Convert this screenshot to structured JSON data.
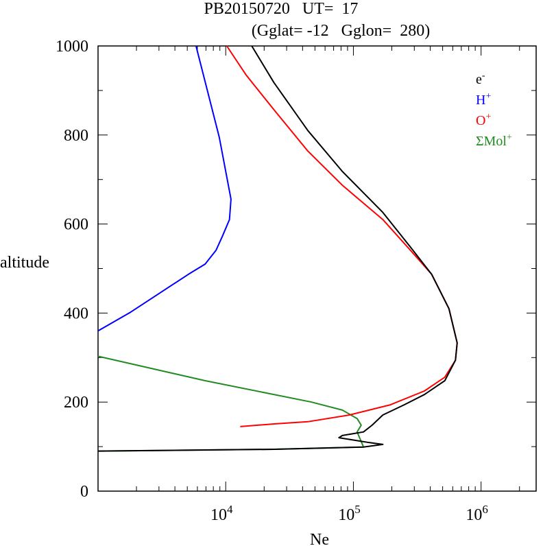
{
  "chart_data": {
    "type": "line",
    "title": "PB20150720   UT=  17",
    "subtitle": "(Gglat= -12   Gglon=  280)",
    "xlabel": "Ne",
    "ylabel": "altitude",
    "xscale": "log",
    "xlim": [
      1000,
      2700000
    ],
    "ylim": [
      0,
      1000
    ],
    "xticks": [
      {
        "value": 10000,
        "base": "10",
        "exp": "4"
      },
      {
        "value": 100000,
        "base": "10",
        "exp": "5"
      },
      {
        "value": 1000000,
        "base": "10",
        "exp": "6"
      }
    ],
    "yticks": [
      0,
      200,
      400,
      600,
      800,
      1000
    ],
    "grid": false,
    "legend_placement": "top-right",
    "series": [
      {
        "name": "e",
        "sup": "-",
        "color": "#000000",
        "x": [
          16000,
          23800,
          44000,
          82000,
          170000,
          280000,
          410000,
          560000,
          650000,
          630000,
          520000,
          360000,
          250000,
          170000,
          140000,
          120000,
          82000,
          77000,
          134000,
          170000,
          120000,
          24000,
          1000
        ],
        "y": [
          1000,
          918,
          810,
          718,
          626,
          548,
          487,
          410,
          333,
          294,
          248,
          217,
          194,
          171,
          148,
          133,
          125,
          120,
          109,
          105,
          99,
          94,
          90
        ]
      },
      {
        "name": "H",
        "sup": "+",
        "color": "#0000ff",
        "x": [
          5850,
          8900,
          11000,
          10700,
          9400,
          8400,
          6900,
          5100,
          2900,
          1800,
          1000
        ],
        "y": [
          1000,
          795,
          656,
          610,
          572,
          541,
          510,
          487,
          441,
          402,
          360
        ]
      },
      {
        "name": "O",
        "sup": "+",
        "color": "#ff0000",
        "x": [
          10200,
          14500,
          23800,
          44000,
          82000,
          170000,
          280000,
          410000,
          560000,
          650000,
          630000,
          520000,
          360000,
          195000,
          93000,
          44000,
          24000,
          13000
        ],
        "y": [
          1000,
          934,
          857,
          764,
          687,
          610,
          541,
          487,
          410,
          333,
          294,
          256,
          225,
          194,
          171,
          156,
          151,
          145
        ]
      },
      {
        "name": "ΣMol",
        "sup": "+",
        "color": "#228b22",
        "x": [
          1000,
          6900,
          47000,
          82000,
          107000,
          115000,
          107000,
          120000,
          24000,
          1000
        ],
        "y": [
          303,
          248,
          200,
          182,
          163,
          148,
          133,
          99,
          94,
          90
        ]
      }
    ]
  }
}
